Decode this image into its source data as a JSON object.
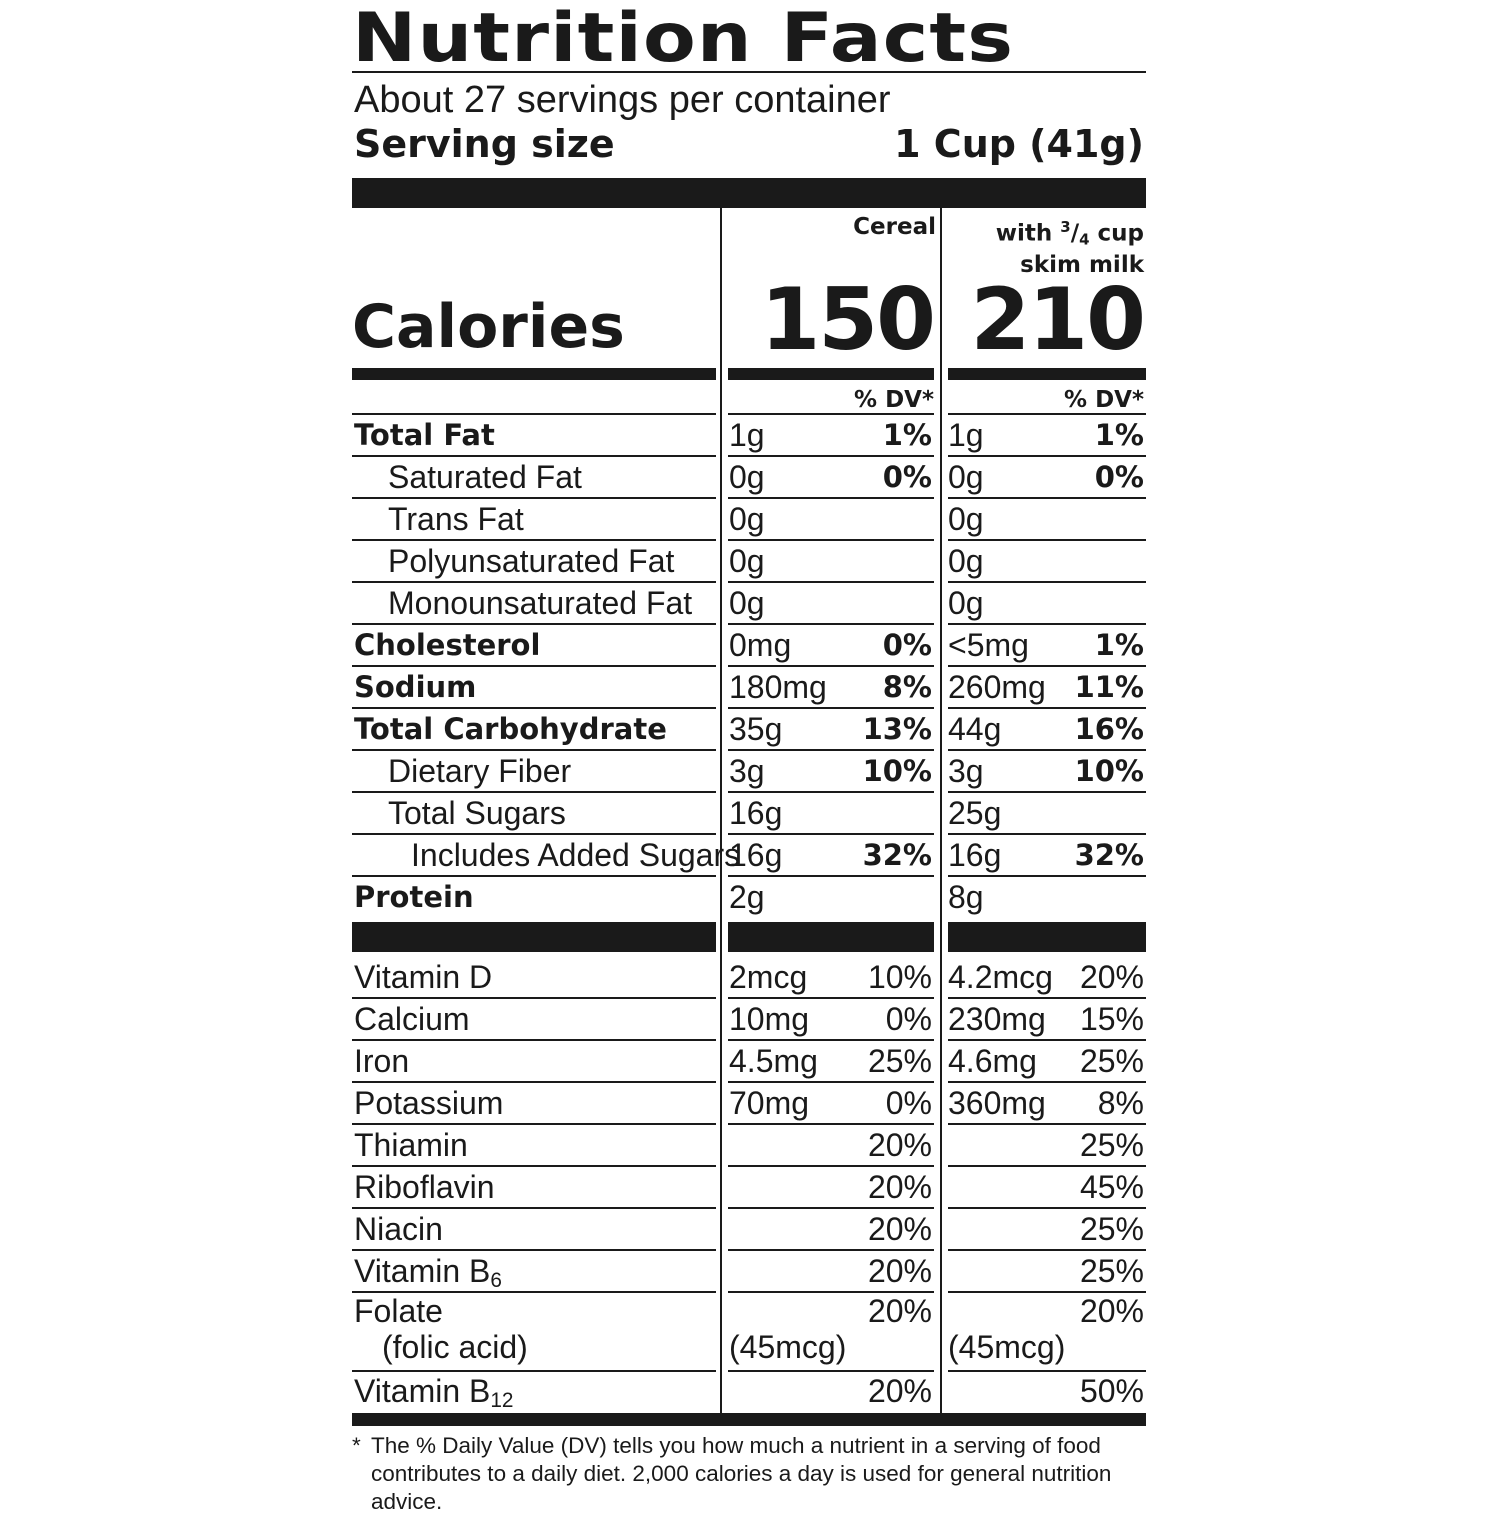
{
  "label": {
    "title": "Nutrition Facts",
    "servings_per_container": "About 27 servings per container",
    "serving_size_label": "Serving size",
    "serving_size_value": "1 Cup (41g)"
  },
  "columns": {
    "cereal": "Cereal",
    "milk_line1_prefix": "with ",
    "milk_line1_num": "3",
    "milk_line1_den": "4",
    "milk_line1_suffix": " cup",
    "milk_line2": "skim milk"
  },
  "calories": {
    "label": "Calories",
    "cereal": "150",
    "milk": "210"
  },
  "dv_header": "% DV*",
  "nutrients": [
    {
      "name": "Total Fat",
      "bold": true,
      "indent": 0,
      "c_amt": "1g",
      "c_dv": "1%",
      "m_amt": "1g",
      "m_dv": "1%"
    },
    {
      "name": "Saturated Fat",
      "bold": false,
      "indent": 1,
      "c_amt": "0g",
      "c_dv": "0%",
      "m_amt": "0g",
      "m_dv": "0%"
    },
    {
      "name": "Trans Fat",
      "bold": false,
      "indent": 1,
      "c_amt": "0g",
      "c_dv": "",
      "m_amt": "0g",
      "m_dv": ""
    },
    {
      "name": "Polyunsaturated Fat",
      "bold": false,
      "indent": 1,
      "c_amt": "0g",
      "c_dv": "",
      "m_amt": "0g",
      "m_dv": ""
    },
    {
      "name": "Monounsaturated Fat",
      "bold": false,
      "indent": 1,
      "c_amt": "0g",
      "c_dv": "",
      "m_amt": "0g",
      "m_dv": ""
    },
    {
      "name": "Cholesterol",
      "bold": true,
      "indent": 0,
      "c_amt": "0mg",
      "c_dv": "0%",
      "m_amt": "<5mg",
      "m_dv": "1%"
    },
    {
      "name": "Sodium",
      "bold": true,
      "indent": 0,
      "c_amt": "180mg",
      "c_dv": "8%",
      "m_amt": "260mg",
      "m_dv": "11%"
    },
    {
      "name": "Total Carbohydrate",
      "bold": true,
      "indent": 0,
      "c_amt": "35g",
      "c_dv": "13%",
      "m_amt": "44g",
      "m_dv": "16%"
    },
    {
      "name": "Dietary Fiber",
      "bold": false,
      "indent": 1,
      "c_amt": "3g",
      "c_dv": "10%",
      "m_amt": "3g",
      "m_dv": "10%"
    },
    {
      "name": "Total Sugars",
      "bold": false,
      "indent": 1,
      "c_amt": "16g",
      "c_dv": "",
      "m_amt": "25g",
      "m_dv": ""
    },
    {
      "name": "Includes Added Sugars",
      "bold": false,
      "indent": 2,
      "c_amt": "16g",
      "c_dv": "32%",
      "m_amt": "16g",
      "m_dv": "32%"
    },
    {
      "name": "Protein",
      "bold": true,
      "indent": 0,
      "c_amt": "2g",
      "c_dv": "",
      "m_amt": "8g",
      "m_dv": ""
    }
  ],
  "vitamins": [
    {
      "name": "Vitamin D",
      "sub": "",
      "c_amt": "2mcg",
      "c_dv": "10%",
      "m_amt": "4.2mcg",
      "m_dv": "20%"
    },
    {
      "name": "Calcium",
      "sub": "",
      "c_amt": "10mg",
      "c_dv": "0%",
      "m_amt": "230mg",
      "m_dv": "15%"
    },
    {
      "name": "Iron",
      "sub": "",
      "c_amt": "4.5mg",
      "c_dv": "25%",
      "m_amt": "4.6mg",
      "m_dv": "25%"
    },
    {
      "name": "Potassium",
      "sub": "",
      "c_amt": "70mg",
      "c_dv": "0%",
      "m_amt": "360mg",
      "m_dv": "8%"
    },
    {
      "name": "Thiamin",
      "sub": "",
      "c_amt": "",
      "c_dv": "20%",
      "m_amt": "",
      "m_dv": "25%"
    },
    {
      "name": "Riboflavin",
      "sub": "",
      "c_amt": "",
      "c_dv": "20%",
      "m_amt": "",
      "m_dv": "45%"
    },
    {
      "name": "Niacin",
      "sub": "",
      "c_amt": "",
      "c_dv": "20%",
      "m_amt": "",
      "m_dv": "25%"
    },
    {
      "name": "Vitamin B",
      "sub": "6",
      "c_amt": "",
      "c_dv": "20%",
      "m_amt": "",
      "m_dv": "25%"
    }
  ],
  "folate": {
    "name": "Folate",
    "name_line2": "(folic acid)",
    "c_dv": "20%",
    "c_amt": "(45mcg)",
    "m_dv": "20%",
    "m_amt": "(45mcg)"
  },
  "b12": {
    "name": "Vitamin B",
    "sub": "12",
    "c_dv": "20%",
    "m_dv": "50%"
  },
  "footnote": {
    "star": "*",
    "text": "The % Daily Value (DV) tells you how much a nutrient in a serving of food contributes to a daily diet. 2,000 calories a day is used for general nutrition advice."
  },
  "colors": {
    "ink": "#1a1a1a",
    "background": "#ffffff"
  }
}
